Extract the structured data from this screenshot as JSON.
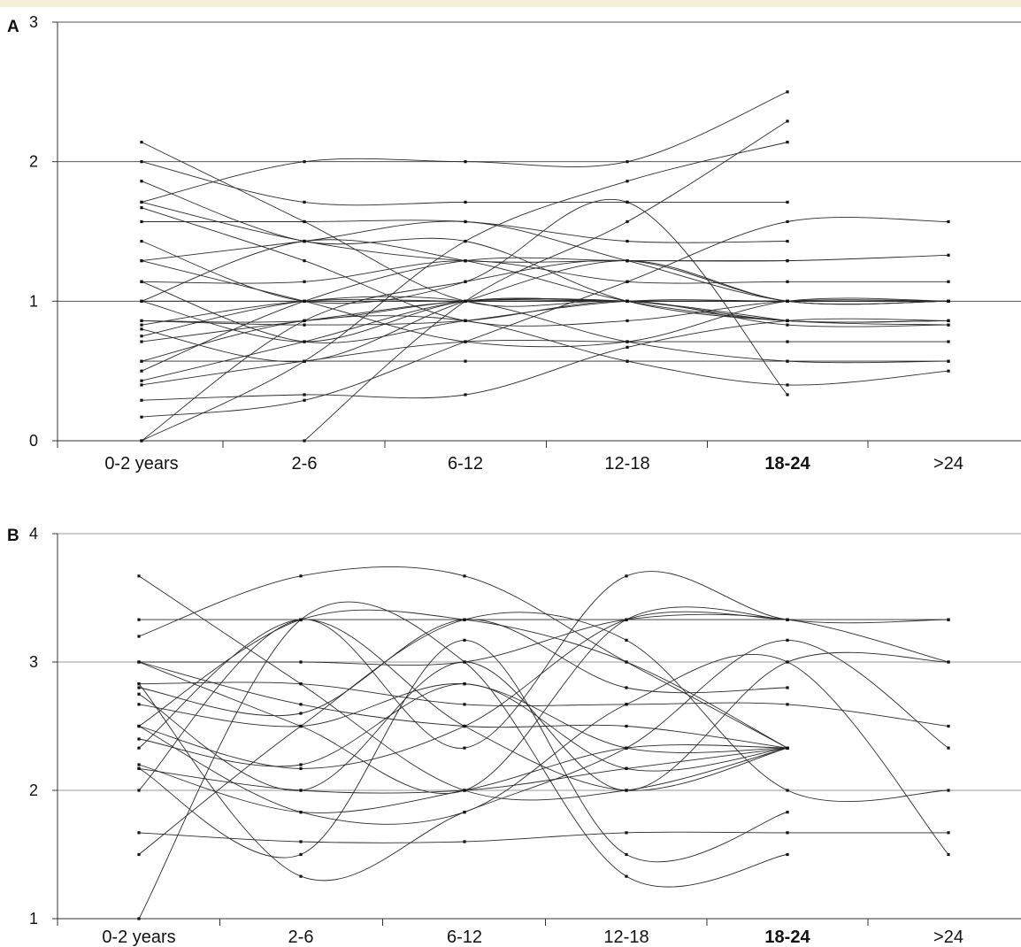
{
  "chart_data": [
    {
      "type": "line",
      "panel_label": "A",
      "categories": [
        "0-2 years",
        "2-6",
        "6-12",
        "12-18",
        "18-24",
        ">24"
      ],
      "yticks": [
        "0",
        "1",
        "2",
        "3"
      ],
      "ylim": [
        0,
        3
      ],
      "grid": "horizontal lines at y=1, 2, 3",
      "series": [
        {
          "values": [
            2.14,
            1.57,
            1.0,
            1.0,
            0.86,
            null
          ]
        },
        {
          "values": [
            2.0,
            1.71,
            1.71,
            1.71,
            1.71,
            null
          ]
        },
        {
          "values": [
            1.86,
            1.43,
            1.43,
            1.0,
            0.86,
            0.86
          ]
        },
        {
          "values": [
            1.71,
            2.0,
            2.0,
            2.0,
            2.5,
            null
          ]
        },
        {
          "values": [
            1.71,
            1.43,
            1.29,
            1.29,
            1.29,
            1.33
          ]
        },
        {
          "values": [
            1.67,
            1.29,
            0.86,
            0.86,
            1.0,
            1.0
          ]
        },
        {
          "values": [
            1.57,
            1.57,
            1.57,
            1.43,
            1.43,
            null
          ]
        },
        {
          "values": [
            1.43,
            1.0,
            1.14,
            1.71,
            0.33,
            null
          ]
        },
        {
          "values": [
            1.29,
            1.43,
            1.57,
            1.29,
            1.0,
            1.0
          ]
        },
        {
          "values": [
            1.29,
            1.0,
            0.71,
            0.71,
            1.0,
            1.0
          ]
        },
        {
          "values": [
            1.14,
            1.14,
            1.29,
            1.14,
            1.14,
            1.14
          ]
        },
        {
          "values": [
            1.14,
            0.71,
            0.86,
            1.0,
            1.0,
            1.0
          ]
        },
        {
          "values": [
            1.0,
            1.43,
            1.29,
            1.0,
            0.86,
            0.83
          ]
        },
        {
          "values": [
            1.0,
            0.71,
            1.0,
            1.0,
            1.0,
            1.0
          ]
        },
        {
          "values": [
            0.86,
            0.86,
            1.0,
            1.0,
            0.86,
            0.86
          ]
        },
        {
          "values": [
            0.83,
            1.0,
            1.0,
            1.0,
            1.0,
            null
          ]
        },
        {
          "values": [
            0.8,
            0.57,
            1.0,
            1.29,
            1.0,
            1.0
          ]
        },
        {
          "values": [
            0.75,
            1.0,
            1.0,
            0.71,
            0.57,
            0.57
          ]
        },
        {
          "values": [
            0.71,
            0.86,
            1.0,
            1.0,
            1.0,
            1.0
          ]
        },
        {
          "values": [
            0.57,
            0.57,
            0.57,
            0.57,
            0.57,
            0.57
          ]
        },
        {
          "values": [
            0.57,
            0.86,
            0.86,
            0.57,
            0.4,
            0.5
          ]
        },
        {
          "values": [
            0.5,
            1.0,
            1.29,
            1.29,
            1.29,
            null
          ]
        },
        {
          "values": [
            0.43,
            0.71,
            1.0,
            1.0,
            1.0,
            1.0
          ]
        },
        {
          "values": [
            0.4,
            0.57,
            0.71,
            0.71,
            0.71,
            0.71
          ]
        },
        {
          "values": [
            0.29,
            0.33,
            0.33,
            0.67,
            0.86,
            0.86
          ]
        },
        {
          "values": [
            0.17,
            0.29,
            0.71,
            1.14,
            1.57,
            1.57
          ]
        },
        {
          "values": [
            0.0,
            0.57,
            1.43,
            1.86,
            2.14,
            null
          ]
        },
        {
          "values": [
            0.0,
            0.86,
            1.14,
            1.29,
            1.0,
            1.0
          ]
        },
        {
          "values": [
            null,
            0.0,
            1.0,
            1.57,
            2.29,
            null
          ]
        },
        {
          "values": [
            1.0,
            1.0,
            1.0,
            1.0,
            1.0,
            1.0
          ]
        },
        {
          "values": [
            0.86,
            0.83,
            0.86,
            1.0,
            0.83,
            0.83
          ]
        }
      ]
    },
    {
      "type": "line",
      "panel_label": "B",
      "categories": [
        "0-2 years",
        "2-6",
        "6-12",
        "12-18",
        "18-24",
        ">24"
      ],
      "yticks": [
        "1",
        "2",
        "3",
        "4"
      ],
      "ylim": [
        1,
        4
      ],
      "grid": "horizontal lines at y=2, 3, 4",
      "series": [
        {
          "values": [
            3.67,
            2.83,
            2.0,
            2.0,
            2.33,
            null
          ]
        },
        {
          "values": [
            3.33,
            3.33,
            3.33,
            3.33,
            3.33,
            3.33
          ]
        },
        {
          "values": [
            3.2,
            3.67,
            3.67,
            3.0,
            2.33,
            null
          ]
        },
        {
          "values": [
            3.0,
            3.0,
            3.0,
            3.33,
            3.33,
            3.0
          ]
        },
        {
          "values": [
            3.0,
            2.67,
            2.5,
            2.5,
            2.33,
            null
          ]
        },
        {
          "values": [
            3.0,
            2.5,
            2.0,
            3.33,
            3.33,
            null
          ]
        },
        {
          "values": [
            2.83,
            2.83,
            2.67,
            2.67,
            2.67,
            2.5
          ]
        },
        {
          "values": [
            2.8,
            2.6,
            3.33,
            2.8,
            2.8,
            null
          ]
        },
        {
          "values": [
            2.75,
            2.0,
            3.0,
            2.0,
            3.0,
            3.0
          ]
        },
        {
          "values": [
            2.67,
            2.5,
            2.83,
            2.33,
            2.33,
            null
          ]
        },
        {
          "values": [
            2.5,
            3.33,
            3.33,
            3.0,
            2.33,
            null
          ]
        },
        {
          "values": [
            2.5,
            2.17,
            2.5,
            3.33,
            3.33,
            null
          ]
        },
        {
          "values": [
            2.4,
            2.2,
            2.83,
            2.17,
            2.33,
            null
          ]
        },
        {
          "values": [
            2.33,
            3.33,
            2.5,
            2.0,
            2.33,
            null
          ]
        },
        {
          "values": [
            2.2,
            1.83,
            2.0,
            2.33,
            2.33,
            null
          ]
        },
        {
          "values": [
            2.17,
            2.0,
            2.0,
            2.17,
            2.33,
            null
          ]
        },
        {
          "values": [
            2.17,
            1.5,
            3.17,
            1.5,
            1.83,
            null
          ]
        },
        {
          "values": [
            2.0,
            3.33,
            2.33,
            3.67,
            3.33,
            3.33
          ]
        },
        {
          "values": [
            1.67,
            1.6,
            1.6,
            1.67,
            1.67,
            1.67
          ]
        },
        {
          "values": [
            1.5,
            2.5,
            3.33,
            3.17,
            2.0,
            2.0
          ]
        },
        {
          "values": [
            1.0,
            3.33,
            3.0,
            1.33,
            1.5,
            null
          ]
        },
        {
          "values": [
            2.83,
            1.33,
            1.83,
            2.33,
            3.17,
            2.33
          ]
        },
        {
          "values": [
            2.5,
            1.83,
            1.83,
            2.67,
            3.0,
            1.5
          ]
        }
      ]
    }
  ]
}
